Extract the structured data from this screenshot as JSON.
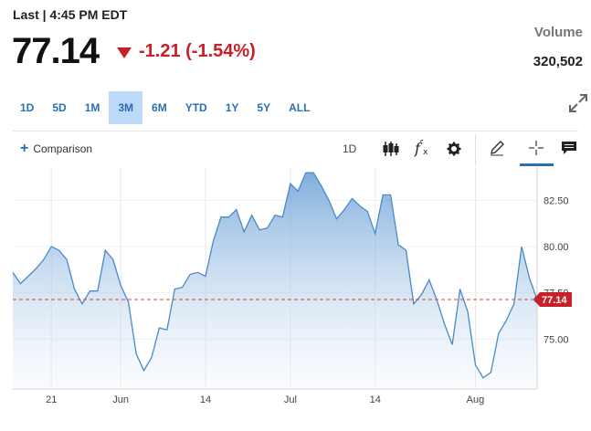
{
  "quote": {
    "last_label": "Last | 4:45 PM EDT",
    "price": "77.14",
    "change": "-1.21 (-1.54%)",
    "volume_label": "Volume",
    "volume_value": "320,502",
    "direction": "down"
  },
  "ranges": [
    {
      "label": "1D",
      "active": false
    },
    {
      "label": "5D",
      "active": false
    },
    {
      "label": "1M",
      "active": false
    },
    {
      "label": "3M",
      "active": true
    },
    {
      "label": "6M",
      "active": false
    },
    {
      "label": "YTD",
      "active": false
    },
    {
      "label": "1Y",
      "active": false
    },
    {
      "label": "5Y",
      "active": false
    },
    {
      "label": "ALL",
      "active": false
    }
  ],
  "toolbar": {
    "comparison_label": "Comparison",
    "interval_label": "1D",
    "icons": [
      "candlestick-icon",
      "fx-indicator-icon",
      "gear-icon",
      "pencil-draw-icon",
      "crosshair-icon",
      "comment-icon"
    ],
    "expand_icon": "expand-icon"
  },
  "colors": {
    "accent": "#2a6fb0",
    "line": "#4a89c8",
    "negative": "#c8202b",
    "active_tab": "#bcd9f7"
  },
  "chart_data": {
    "type": "area",
    "x_tick_labels": [
      "21",
      "Jun",
      "14",
      "Jul",
      "14",
      "Aug"
    ],
    "y_ticks": [
      75.0,
      77.5,
      80.0,
      82.5
    ],
    "y_tick_labels": [
      "75.00",
      "77.50",
      "80.00",
      "82.50"
    ],
    "ylim": [
      72.3,
      84.3
    ],
    "last_price": 77.14,
    "last_price_label": "77.14",
    "series": [
      {
        "values": [
          78.6,
          78.0,
          78.4,
          78.8,
          79.3,
          80.0,
          79.8,
          79.3,
          77.7,
          76.9,
          77.6,
          77.6,
          79.8,
          79.3,
          77.9,
          77.0,
          74.2,
          73.3,
          74.0,
          75.6,
          75.5,
          77.7,
          77.8,
          78.5,
          78.6,
          78.4,
          80.3,
          81.6,
          81.6,
          82.0,
          80.8,
          81.7,
          80.9,
          81.0,
          81.7,
          81.6,
          83.4,
          83.0,
          84.0,
          84.0,
          83.3,
          82.5,
          81.5,
          82.0,
          82.6,
          82.2,
          81.9,
          80.7,
          82.8,
          82.8,
          80.1,
          79.8,
          76.9,
          77.4,
          78.2,
          77.1,
          75.8,
          74.7,
          77.7,
          76.5,
          73.6,
          72.9,
          73.2,
          75.3,
          76.0,
          76.9,
          80.0,
          78.3,
          77.14
        ]
      }
    ]
  }
}
